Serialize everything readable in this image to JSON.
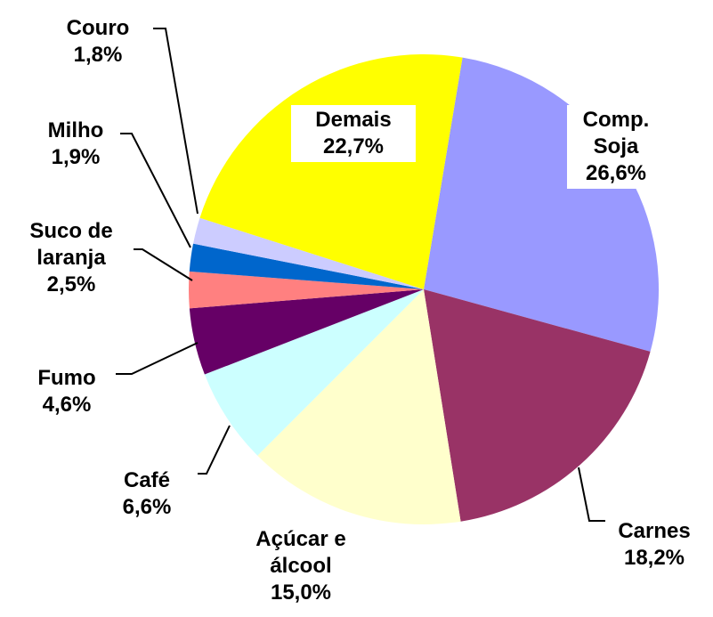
{
  "chart_data": {
    "type": "pie",
    "categories": [
      "Comp. Soja",
      "Carnes",
      "Açúcar e álcool",
      "Café",
      "Fumo",
      "Suco de laranja",
      "Milho",
      "Couro",
      "Demais"
    ],
    "values": [
      26.6,
      18.2,
      15.0,
      6.6,
      4.6,
      2.5,
      1.9,
      1.8,
      22.7
    ],
    "value_labels": [
      "26,6%",
      "18,2%",
      "15,0%",
      "6,6%",
      "4,6%",
      "2,5%",
      "1,9%",
      "1,8%",
      "22,7%"
    ],
    "colors": [
      "#9999ff",
      "#993366",
      "#ffffcc",
      "#ccffff",
      "#660066",
      "#ff8080",
      "#0066cc",
      "#ccccff",
      "#ffff00"
    ]
  }
}
